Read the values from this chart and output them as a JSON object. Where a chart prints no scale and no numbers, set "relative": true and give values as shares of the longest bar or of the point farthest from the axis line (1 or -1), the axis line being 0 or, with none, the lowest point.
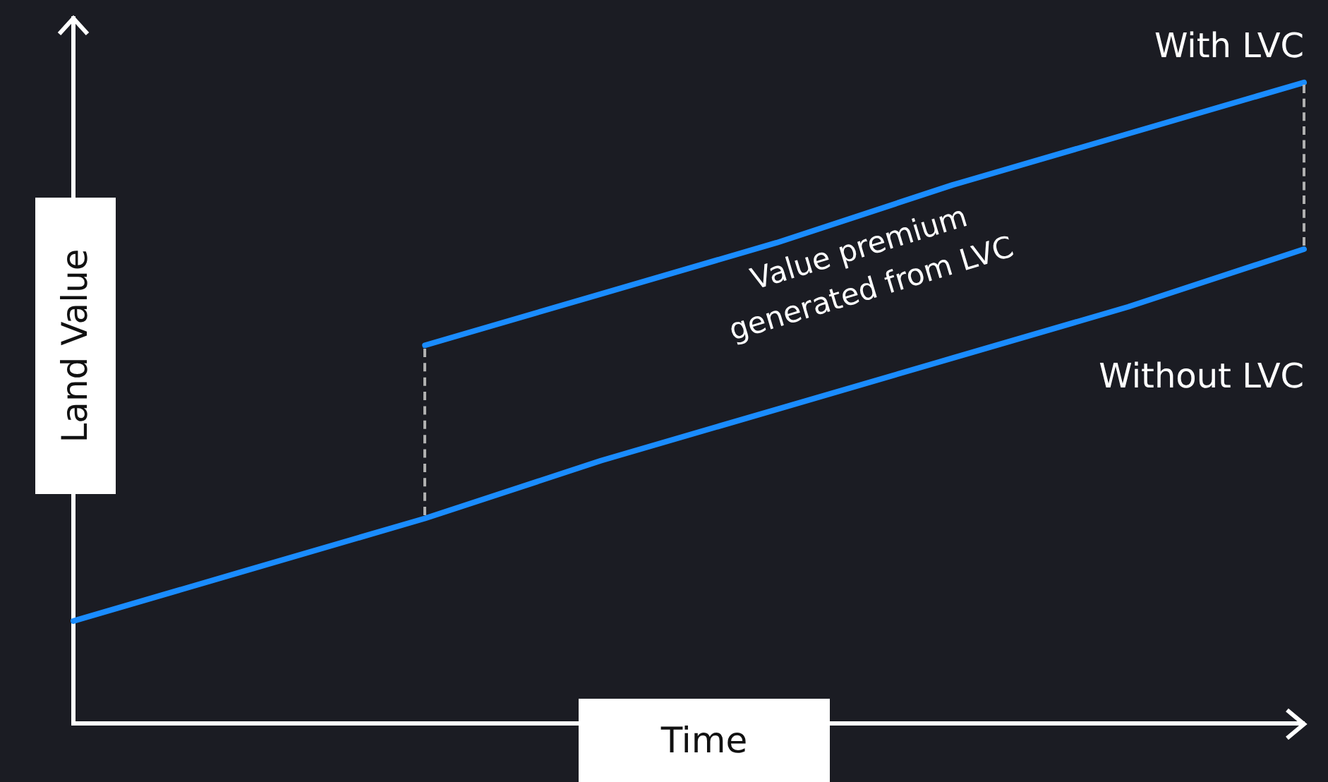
{
  "chart_data": {
    "type": "line",
    "xlabel": "Time",
    "ylabel": "Land Value",
    "relative": true,
    "legend": false,
    "grid": false,
    "marker": "none",
    "line_style": "solid",
    "categories": [
      null,
      null,
      null,
      null,
      null,
      null,
      null,
      null
    ],
    "series": [
      {
        "name": "Without LVC",
        "color": "#1a8cff",
        "values": [
          0.16,
          0.24,
          0.32,
          0.41,
          0.49,
          0.57,
          0.65,
          0.74
        ]
      },
      {
        "name": "With LVC",
        "color": "#1a8cff",
        "values": [
          null,
          null,
          0.59,
          0.67,
          0.75,
          0.84,
          0.92,
          1.0
        ]
      }
    ],
    "annotations": [
      "Value premium generated from LVC"
    ]
  }
}
